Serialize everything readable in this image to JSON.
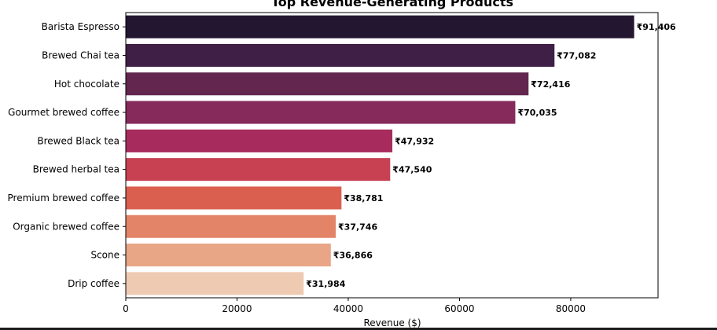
{
  "chart_data": {
    "type": "bar",
    "orientation": "horizontal",
    "title": "Top Revenue-Generating Products",
    "xlabel": "Revenue ($)",
    "ylabel": "",
    "xlim": [
      0,
      95700
    ],
    "xticks": [
      0,
      20000,
      40000,
      60000,
      80000
    ],
    "xtick_labels": [
      "0",
      "20000",
      "40000",
      "60000",
      "80000"
    ],
    "grid": false,
    "legend": "none",
    "categories": [
      "Barista Espresso",
      "Brewed Chai tea",
      "Hot chocolate",
      "Gourmet brewed coffee",
      "Brewed Black tea",
      "Brewed herbal tea",
      "Premium brewed coffee",
      "Organic brewed coffee",
      "Scone",
      "Drip coffee"
    ],
    "values": [
      91406,
      77082,
      72416,
      70035,
      47932,
      47540,
      38781,
      37746,
      36866,
      31984
    ],
    "value_labels": [
      "₹91,406",
      "₹77,082",
      "₹72,416",
      "₹70,035",
      "₹47,932",
      "₹47,540",
      "₹38,781",
      "₹37,746",
      "₹36,866",
      "₹31,984"
    ],
    "colors": [
      "#231631",
      "#3f1f45",
      "#62264f",
      "#852a5a",
      "#a72c5d",
      "#c74153",
      "#da5f4f",
      "#e38468",
      "#e8a687",
      "#efcab2"
    ]
  }
}
